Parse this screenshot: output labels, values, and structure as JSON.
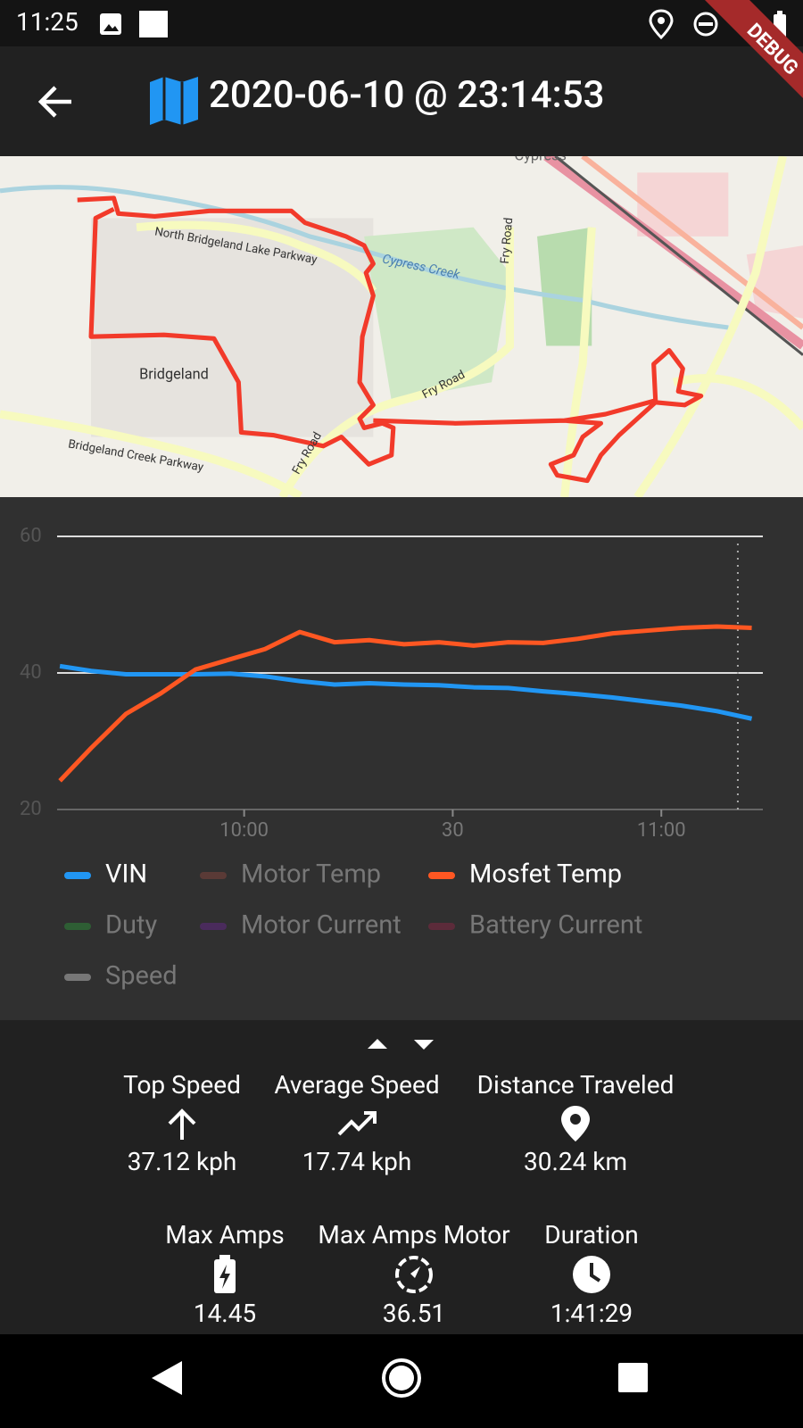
{
  "status_bar": {
    "time": "11:25"
  },
  "app_bar": {
    "title": "2020-06-10 @ 23:14:53",
    "banner": "DEBUG"
  },
  "map": {
    "labels": [
      "North Bridgeland Lake Parkway",
      "Cypress Creek",
      "Fry Road",
      "Bridgeland",
      "Bridgeland Creek Parkway",
      "Fry Road",
      "Fry Road",
      "Cypress"
    ]
  },
  "chart_data": {
    "type": "line",
    "x": [
      573.5,
      578,
      583,
      588,
      593,
      598,
      603,
      608,
      613,
      618,
      623,
      628,
      633,
      638,
      643,
      648,
      653,
      658,
      663,
      668,
      673
    ],
    "xlim": [
      573.1,
      674.6
    ],
    "xticks": [
      {
        "value": 600,
        "label": "10:00"
      },
      {
        "value": 630,
        "label": "30"
      },
      {
        "value": 660,
        "label": "11:00"
      }
    ],
    "ylim": [
      20,
      60
    ],
    "yticks": [
      20,
      40,
      60
    ],
    "grid": true,
    "cursor_x": 671,
    "series": [
      {
        "name": "VIN",
        "color": "#2196f3",
        "visible": true,
        "values": [
          41,
          40.3,
          39.8,
          39.8,
          39.8,
          39.9,
          39.5,
          38.8,
          38.3,
          38.5,
          38.3,
          38.2,
          37.9,
          37.8,
          37.3,
          36.9,
          36.4,
          35.8,
          35.2,
          34.4,
          33.3
        ]
      },
      {
        "name": "Motor Temp",
        "color": "#5a3a36",
        "visible": false
      },
      {
        "name": "Mosfet Temp",
        "color": "#ff5722",
        "visible": true,
        "values": [
          24.2,
          29,
          34,
          37,
          40.5,
          42,
          43.5,
          46,
          44.5,
          44.8,
          44.2,
          44.5,
          44,
          44.5,
          44.4,
          45,
          45.8,
          46.2,
          46.6,
          46.8,
          46.6
        ]
      },
      {
        "name": "Duty",
        "color": "#2e5e34",
        "visible": false
      },
      {
        "name": "Motor Current",
        "color": "#4a2b5c",
        "visible": false
      },
      {
        "name": "Battery Current",
        "color": "#5c2b3a",
        "visible": false
      },
      {
        "name": "Speed",
        "color": "#777777",
        "visible": false
      }
    ]
  },
  "stats": [
    {
      "label": "Top Speed",
      "value": "37.12 kph"
    },
    {
      "label": "Average Speed",
      "value": "17.74 kph"
    },
    {
      "label": "Distance Traveled",
      "value": "30.24 km"
    },
    {
      "label": "Max Amps",
      "value": "14.45"
    },
    {
      "label": "Max Amps Motor",
      "value": "36.51"
    },
    {
      "label": "Duration",
      "value": "1:41:29"
    }
  ]
}
